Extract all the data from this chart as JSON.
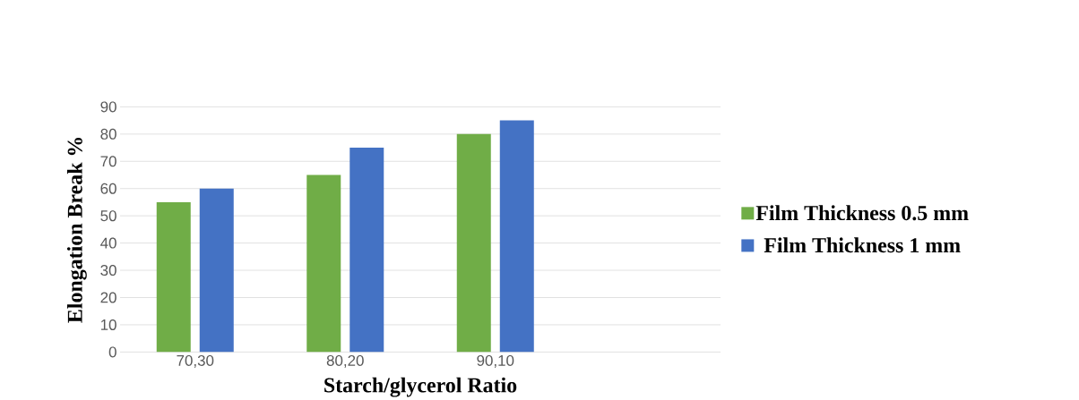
{
  "chart_data": {
    "type": "bar",
    "xlabel": "Starch/glycerol Ratio",
    "ylabel": "Elongation Break %",
    "categories": [
      "70,30",
      "80,20",
      "90,10",
      null
    ],
    "series": [
      {
        "name": "Film Thickness 0.5 mm",
        "color": "#70ad47",
        "values": [
          55,
          65,
          80,
          null
        ]
      },
      {
        "name": "Film Thickness 1 mm",
        "color": "#4472c4",
        "values": [
          60,
          75,
          85,
          null
        ]
      }
    ],
    "ylim": [
      0,
      90
    ],
    "yticks": [
      0,
      10,
      20,
      30,
      40,
      50,
      60,
      70,
      80,
      90
    ],
    "grid": "y",
    "legend": "right"
  }
}
